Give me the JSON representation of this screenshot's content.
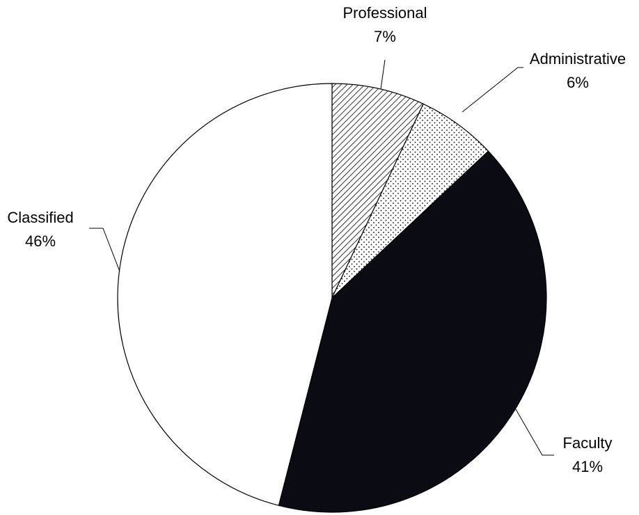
{
  "chart_data": {
    "type": "pie",
    "title": "",
    "start_angle_deg": 0,
    "direction": "clockwise",
    "legend": "none",
    "slices": [
      {
        "name": "Professional",
        "value": 7,
        "value_label": "7%",
        "fill": "hatch-diagonal",
        "color": "#000000"
      },
      {
        "name": "Administrative",
        "value": 6,
        "value_label": "6%",
        "fill": "dots",
        "color": "#000000"
      },
      {
        "name": "Faculty",
        "value": 41,
        "value_label": "41%",
        "fill": "solid",
        "color": "#0b0b14"
      },
      {
        "name": "Classified",
        "value": 46,
        "value_label": "46%",
        "fill": "solid",
        "color": "#ffffff"
      }
    ]
  }
}
